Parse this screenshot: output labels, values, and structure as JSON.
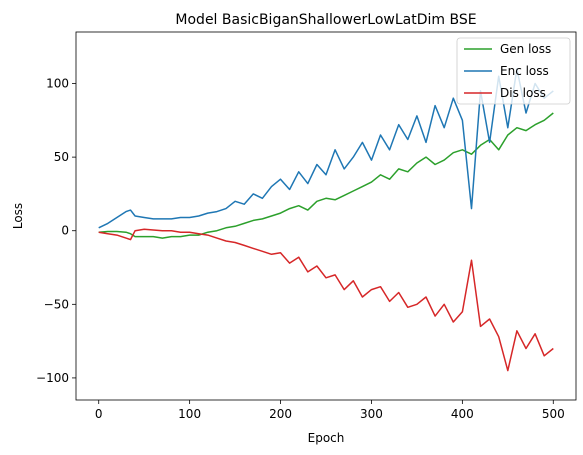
{
  "chart_data": {
    "type": "line",
    "title": "Model BasicBiganShallowerLowLatDim BSE",
    "xlabel": "Epoch",
    "ylabel": "Loss",
    "xlim": [
      -25,
      525
    ],
    "ylim": [
      -115,
      135
    ],
    "xticks": [
      0,
      100,
      200,
      300,
      400,
      500
    ],
    "yticks": [
      -100,
      -50,
      0,
      50,
      100
    ],
    "ytick_labels": [
      "−100",
      "−50",
      "0",
      "50",
      "100"
    ],
    "grid": false,
    "legend_position": "top-right",
    "series": [
      {
        "name": "Gen loss",
        "color": "#2ca02c",
        "x": [
          0,
          10,
          20,
          30,
          35,
          40,
          50,
          60,
          70,
          80,
          90,
          100,
          110,
          120,
          130,
          140,
          150,
          160,
          170,
          180,
          190,
          200,
          210,
          220,
          230,
          240,
          250,
          260,
          270,
          280,
          290,
          300,
          310,
          320,
          330,
          340,
          350,
          360,
          370,
          380,
          390,
          400,
          410,
          420,
          430,
          440,
          450,
          460,
          470,
          480,
          490,
          500
        ],
        "values": [
          -1,
          -0.5,
          -0.5,
          -1,
          -2,
          -4,
          -4,
          -4,
          -5,
          -4,
          -4,
          -3,
          -3,
          -1,
          0,
          2,
          3,
          5,
          7,
          8,
          10,
          12,
          15,
          17,
          14,
          20,
          22,
          21,
          24,
          27,
          30,
          33,
          38,
          35,
          42,
          40,
          46,
          50,
          45,
          48,
          53,
          55,
          52,
          58,
          62,
          55,
          65,
          70,
          68,
          72,
          75,
          80
        ]
      },
      {
        "name": "Enc loss",
        "color": "#1f77b4",
        "x": [
          0,
          10,
          20,
          30,
          35,
          40,
          50,
          60,
          70,
          80,
          90,
          100,
          110,
          120,
          130,
          140,
          150,
          160,
          170,
          180,
          190,
          200,
          210,
          220,
          230,
          240,
          250,
          260,
          270,
          280,
          290,
          300,
          310,
          320,
          330,
          340,
          350,
          360,
          370,
          380,
          390,
          400,
          410,
          420,
          430,
          440,
          450,
          460,
          470,
          480,
          490,
          500
        ],
        "values": [
          2,
          5,
          9,
          13,
          14,
          10,
          9,
          8,
          8,
          8,
          9,
          9,
          10,
          12,
          13,
          15,
          20,
          18,
          25,
          22,
          30,
          35,
          28,
          40,
          32,
          45,
          38,
          55,
          42,
          50,
          60,
          48,
          65,
          55,
          72,
          62,
          78,
          60,
          85,
          70,
          90,
          75,
          15,
          95,
          60,
          105,
          70,
          110,
          80,
          100,
          90,
          95
        ]
      },
      {
        "name": "Dis loss",
        "color": "#d62728",
        "x": [
          0,
          10,
          20,
          30,
          35,
          40,
          50,
          60,
          70,
          80,
          90,
          100,
          110,
          120,
          130,
          140,
          150,
          160,
          170,
          180,
          190,
          200,
          210,
          220,
          230,
          240,
          250,
          260,
          270,
          280,
          290,
          300,
          310,
          320,
          330,
          340,
          350,
          360,
          370,
          380,
          390,
          400,
          410,
          420,
          430,
          440,
          450,
          460,
          470,
          480,
          490,
          500
        ],
        "values": [
          -1,
          -2,
          -3,
          -5,
          -6,
          0,
          1,
          0.5,
          0,
          0,
          -1,
          -1,
          -2,
          -3,
          -5,
          -7,
          -8,
          -10,
          -12,
          -14,
          -16,
          -15,
          -22,
          -18,
          -28,
          -24,
          -32,
          -30,
          -40,
          -34,
          -45,
          -40,
          -38,
          -48,
          -42,
          -52,
          -50,
          -45,
          -58,
          -50,
          -62,
          -55,
          -20,
          -65,
          -60,
          -72,
          -95,
          -68,
          -80,
          -70,
          -85,
          -80
        ]
      }
    ]
  }
}
